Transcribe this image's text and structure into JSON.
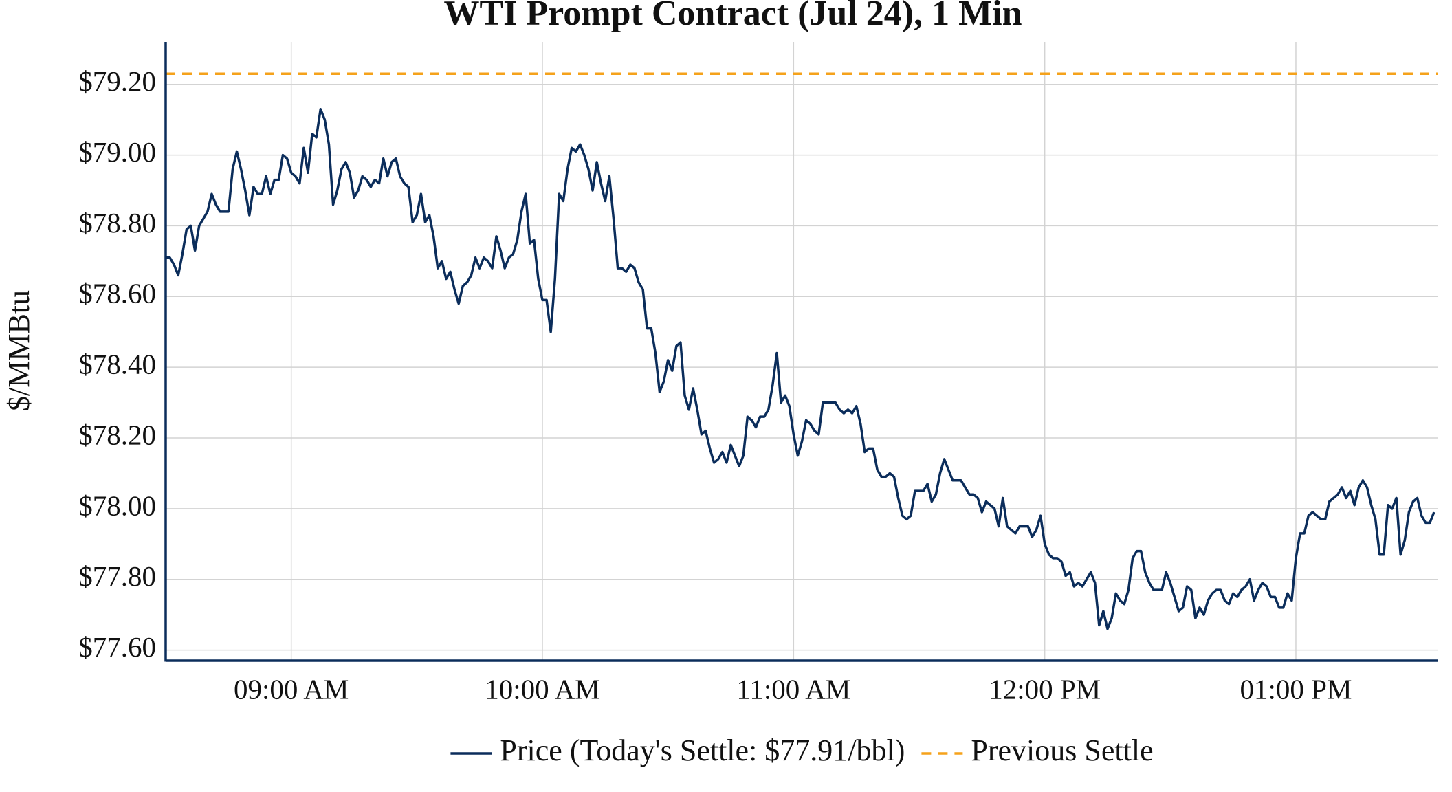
{
  "chart_data": {
    "type": "line",
    "title": "WTI Prompt Contract (Jul 24), 1 Min",
    "ylabel": "$/MMBtu",
    "x": [
      "08:30",
      "08:31",
      "08:32",
      "08:33",
      "08:34",
      "08:35",
      "08:36",
      "08:37",
      "08:38",
      "08:39",
      "08:40",
      "08:41",
      "08:42",
      "08:43",
      "08:44",
      "08:45",
      "08:46",
      "08:47",
      "08:48",
      "08:49",
      "08:50",
      "08:51",
      "08:52",
      "08:53",
      "08:54",
      "08:55",
      "08:56",
      "08:57",
      "08:58",
      "08:59",
      "09:00",
      "09:01",
      "09:02",
      "09:03",
      "09:04",
      "09:05",
      "09:06",
      "09:07",
      "09:08",
      "09:09",
      "09:10",
      "09:11",
      "09:12",
      "09:13",
      "09:14",
      "09:15",
      "09:16",
      "09:17",
      "09:18",
      "09:19",
      "09:20",
      "09:21",
      "09:22",
      "09:23",
      "09:24",
      "09:25",
      "09:26",
      "09:27",
      "09:28",
      "09:29",
      "09:30",
      "09:31",
      "09:32",
      "09:33",
      "09:34",
      "09:35",
      "09:36",
      "09:37",
      "09:38",
      "09:39",
      "09:40",
      "09:41",
      "09:42",
      "09:43",
      "09:44",
      "09:45",
      "09:46",
      "09:47",
      "09:48",
      "09:49",
      "09:50",
      "09:51",
      "09:52",
      "09:53",
      "09:54",
      "09:55",
      "09:56",
      "09:57",
      "09:58",
      "09:59",
      "10:00",
      "10:01",
      "10:02",
      "10:03",
      "10:04",
      "10:05",
      "10:06",
      "10:07",
      "10:08",
      "10:09",
      "10:10",
      "10:11",
      "10:12",
      "10:13",
      "10:14",
      "10:15",
      "10:16",
      "10:17",
      "10:18",
      "10:19",
      "10:20",
      "10:21",
      "10:22",
      "10:23",
      "10:24",
      "10:25",
      "10:26",
      "10:27",
      "10:28",
      "10:29",
      "10:30",
      "10:31",
      "10:32",
      "10:33",
      "10:34",
      "10:35",
      "10:36",
      "10:37",
      "10:38",
      "10:39",
      "10:40",
      "10:41",
      "10:42",
      "10:43",
      "10:44",
      "10:45",
      "10:46",
      "10:47",
      "10:48",
      "10:49",
      "10:50",
      "10:51",
      "10:52",
      "10:53",
      "10:54",
      "10:55",
      "10:56",
      "10:57",
      "10:58",
      "10:59",
      "11:00",
      "11:01",
      "11:02",
      "11:03",
      "11:04",
      "11:05",
      "11:06",
      "11:07",
      "11:08",
      "11:09",
      "11:10",
      "11:11",
      "11:12",
      "11:13",
      "11:14",
      "11:15",
      "11:16",
      "11:17",
      "11:18",
      "11:19",
      "11:20",
      "11:21",
      "11:22",
      "11:23",
      "11:24",
      "11:25",
      "11:26",
      "11:27",
      "11:28",
      "11:29",
      "11:30",
      "11:31",
      "11:32",
      "11:33",
      "11:34",
      "11:35",
      "11:36",
      "11:37",
      "11:38",
      "11:39",
      "11:40",
      "11:41",
      "11:42",
      "11:43",
      "11:44",
      "11:45",
      "11:46",
      "11:47",
      "11:48",
      "11:49",
      "11:50",
      "11:51",
      "11:52",
      "11:53",
      "11:54",
      "11:55",
      "11:56",
      "11:57",
      "11:58",
      "11:59",
      "12:00",
      "12:01",
      "12:02",
      "12:03",
      "12:04",
      "12:05",
      "12:06",
      "12:07",
      "12:08",
      "12:09",
      "12:10",
      "12:11",
      "12:12",
      "12:13",
      "12:14",
      "12:15",
      "12:16",
      "12:17",
      "12:18",
      "12:19",
      "12:20",
      "12:21",
      "12:22",
      "12:23",
      "12:24",
      "12:25",
      "12:26",
      "12:27",
      "12:28",
      "12:29",
      "12:30",
      "12:31",
      "12:32",
      "12:33",
      "12:34",
      "12:35",
      "12:36",
      "12:37",
      "12:38",
      "12:39",
      "12:40",
      "12:41",
      "12:42",
      "12:43",
      "12:44",
      "12:45",
      "12:46",
      "12:47",
      "12:48",
      "12:49",
      "12:50",
      "12:51",
      "12:52",
      "12:53",
      "12:54",
      "12:55",
      "12:56",
      "12:57",
      "12:58",
      "12:59",
      "13:00",
      "13:01",
      "13:02",
      "13:03",
      "13:04",
      "13:05",
      "13:06",
      "13:07",
      "13:08",
      "13:09",
      "13:10",
      "13:11",
      "13:12",
      "13:13",
      "13:14",
      "13:15",
      "13:16",
      "13:17",
      "13:18",
      "13:19",
      "13:20",
      "13:21",
      "13:22",
      "13:23",
      "13:24",
      "13:25",
      "13:26",
      "13:27",
      "13:28",
      "13:29",
      "13:30",
      "13:31",
      "13:32",
      "13:33"
    ],
    "series": [
      {
        "name": "Price (Today's Settle: $77.91/bbl)",
        "color": "#0b2d5b",
        "values": [
          78.71,
          78.71,
          78.69,
          78.66,
          78.72,
          78.79,
          78.8,
          78.73,
          78.8,
          78.82,
          78.84,
          78.89,
          78.86,
          78.84,
          78.84,
          78.84,
          78.96,
          79.01,
          78.96,
          78.9,
          78.83,
          78.91,
          78.89,
          78.89,
          78.94,
          78.89,
          78.93,
          78.93,
          79.0,
          78.99,
          78.95,
          78.94,
          78.92,
          79.02,
          78.95,
          79.06,
          79.05,
          79.13,
          79.1,
          79.03,
          78.86,
          78.9,
          78.96,
          78.98,
          78.95,
          78.88,
          78.9,
          78.94,
          78.93,
          78.91,
          78.93,
          78.92,
          78.99,
          78.94,
          78.98,
          78.99,
          78.94,
          78.92,
          78.91,
          78.81,
          78.83,
          78.89,
          78.81,
          78.83,
          78.77,
          78.68,
          78.7,
          78.65,
          78.67,
          78.62,
          78.58,
          78.63,
          78.64,
          78.66,
          78.71,
          78.68,
          78.71,
          78.7,
          78.68,
          78.77,
          78.73,
          78.68,
          78.71,
          78.72,
          78.76,
          78.84,
          78.89,
          78.75,
          78.76,
          78.65,
          78.59,
          78.59,
          78.5,
          78.65,
          78.89,
          78.87,
          78.96,
          79.02,
          79.01,
          79.03,
          79.0,
          78.96,
          78.9,
          78.98,
          78.92,
          78.87,
          78.94,
          78.82,
          78.68,
          78.68,
          78.67,
          78.69,
          78.68,
          78.64,
          78.62,
          78.51,
          78.51,
          78.44,
          78.33,
          78.36,
          78.42,
          78.39,
          78.46,
          78.47,
          78.32,
          78.28,
          78.34,
          78.28,
          78.21,
          78.22,
          78.17,
          78.13,
          78.14,
          78.16,
          78.13,
          78.18,
          78.15,
          78.12,
          78.15,
          78.26,
          78.25,
          78.23,
          78.26,
          78.26,
          78.28,
          78.35,
          78.44,
          78.3,
          78.32,
          78.29,
          78.21,
          78.15,
          78.19,
          78.25,
          78.24,
          78.22,
          78.21,
          78.3,
          78.3,
          78.3,
          78.3,
          78.28,
          78.27,
          78.28,
          78.27,
          78.29,
          78.24,
          78.16,
          78.17,
          78.17,
          78.11,
          78.09,
          78.09,
          78.1,
          78.09,
          78.03,
          77.98,
          77.97,
          77.98,
          78.05,
          78.05,
          78.05,
          78.07,
          78.02,
          78.04,
          78.1,
          78.14,
          78.11,
          78.08,
          78.08,
          78.08,
          78.06,
          78.04,
          78.04,
          78.03,
          77.99,
          78.02,
          78.01,
          78.0,
          77.95,
          78.03,
          77.95,
          77.94,
          77.93,
          77.95,
          77.95,
          77.95,
          77.92,
          77.94,
          77.98,
          77.9,
          77.87,
          77.86,
          77.86,
          77.85,
          77.81,
          77.82,
          77.78,
          77.79,
          77.78,
          77.8,
          77.82,
          77.79,
          77.67,
          77.71,
          77.66,
          77.69,
          77.76,
          77.74,
          77.73,
          77.77,
          77.86,
          77.88,
          77.88,
          77.82,
          77.79,
          77.77,
          77.77,
          77.77,
          77.82,
          77.79,
          77.75,
          77.71,
          77.72,
          77.78,
          77.77,
          77.69,
          77.72,
          77.7,
          77.74,
          77.76,
          77.77,
          77.77,
          77.74,
          77.73,
          77.76,
          77.75,
          77.77,
          77.78,
          77.8,
          77.74,
          77.77,
          77.79,
          77.78,
          77.75,
          77.75,
          77.72,
          77.72,
          77.76,
          77.74,
          77.86,
          77.93,
          77.93,
          77.98,
          77.99,
          77.98,
          77.97,
          77.97,
          78.02,
          78.03,
          78.04,
          78.06,
          78.03,
          78.05,
          78.01,
          78.06,
          78.08,
          78.06,
          78.01,
          77.97,
          77.87,
          77.87,
          78.01,
          78.0,
          78.03,
          77.87,
          77.91,
          77.99,
          78.02,
          78.03,
          77.98,
          77.96,
          77.96,
          77.99
        ]
      },
      {
        "name": "Previous Settle",
        "color": "#f5a21b",
        "style": "dashed-hline",
        "value": 79.23
      }
    ],
    "xlim": [
      "08:30",
      "13:34"
    ],
    "xticks": [
      {
        "value": "09:00",
        "label": "09:00 AM"
      },
      {
        "value": "10:00",
        "label": "10:00 AM"
      },
      {
        "value": "11:00",
        "label": "11:00 AM"
      },
      {
        "value": "12:00",
        "label": "12:00 PM"
      },
      {
        "value": "13:00",
        "label": "01:00 PM"
      }
    ],
    "ylim": [
      77.57,
      79.32
    ],
    "yticks": [
      {
        "value": 77.6,
        "label": "$77.60"
      },
      {
        "value": 77.8,
        "label": "$77.80"
      },
      {
        "value": 78.0,
        "label": "$78.00"
      },
      {
        "value": 78.2,
        "label": "$78.20"
      },
      {
        "value": 78.4,
        "label": "$78.40"
      },
      {
        "value": 78.6,
        "label": "$78.60"
      },
      {
        "value": 78.8,
        "label": "$78.80"
      },
      {
        "value": 79.0,
        "label": "$79.00"
      },
      {
        "value": 79.2,
        "label": "$79.20"
      }
    ],
    "grid": true,
    "legend": "bottom"
  }
}
